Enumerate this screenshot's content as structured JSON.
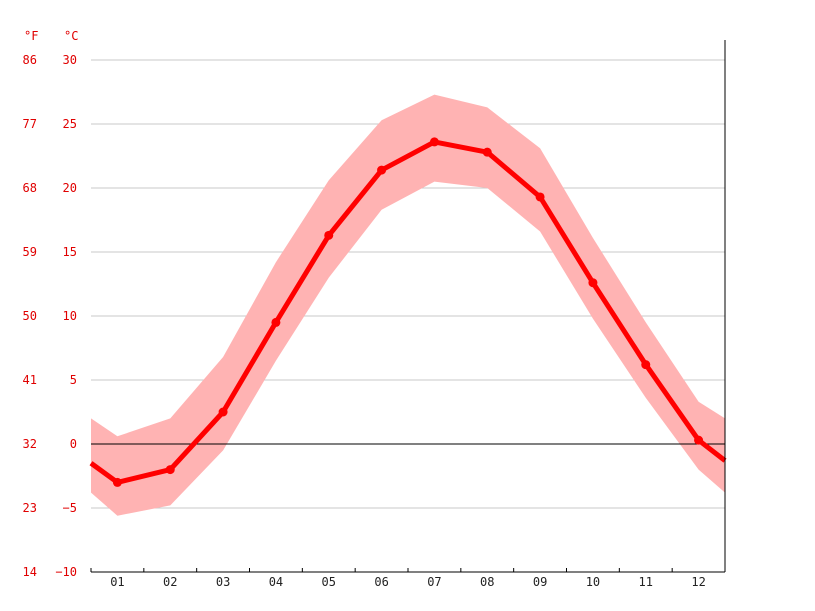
{
  "chart_data": {
    "type": "line",
    "title": "",
    "xlabel": "",
    "ylabel": "",
    "units": {
      "fahrenheit": "°F",
      "celsius": "°C"
    },
    "categories": [
      "01",
      "02",
      "03",
      "04",
      "05",
      "06",
      "07",
      "08",
      "09",
      "10",
      "11",
      "12"
    ],
    "ylim": [
      -10,
      30
    ],
    "y_ticks_c": [
      "30",
      "25",
      "20",
      "15",
      "10",
      "5",
      "0",
      "−5",
      "−10"
    ],
    "y_ticks_f": [
      "86",
      "77",
      "68",
      "59",
      "50",
      "41",
      "32",
      "23",
      "14"
    ],
    "grid": true,
    "series": [
      {
        "values": [
          -3.0,
          -2.0,
          2.5,
          9.5,
          16.3,
          21.4,
          23.6,
          22.8,
          19.3,
          12.6,
          6.2,
          0.3
        ],
        "band_low": [
          -5.6,
          -4.8,
          -0.5,
          6.5,
          13.0,
          18.3,
          20.5,
          20.0,
          16.6,
          9.8,
          3.6,
          -2.0
        ],
        "band_high": [
          0.6,
          2.0,
          6.8,
          14.2,
          20.6,
          25.3,
          27.3,
          26.3,
          23.1,
          16.1,
          9.5,
          3.3
        ],
        "edge_left": {
          "value": -1.5,
          "low": -3.8,
          "high": 2.0
        },
        "edge_right": {
          "value": -1.3,
          "low": -3.8,
          "high": 2.0
        }
      }
    ],
    "colors": {
      "line": "#ff0000",
      "band": "#ffb3b3",
      "grid": "#c8c8c8",
      "zero": "#000000"
    }
  }
}
